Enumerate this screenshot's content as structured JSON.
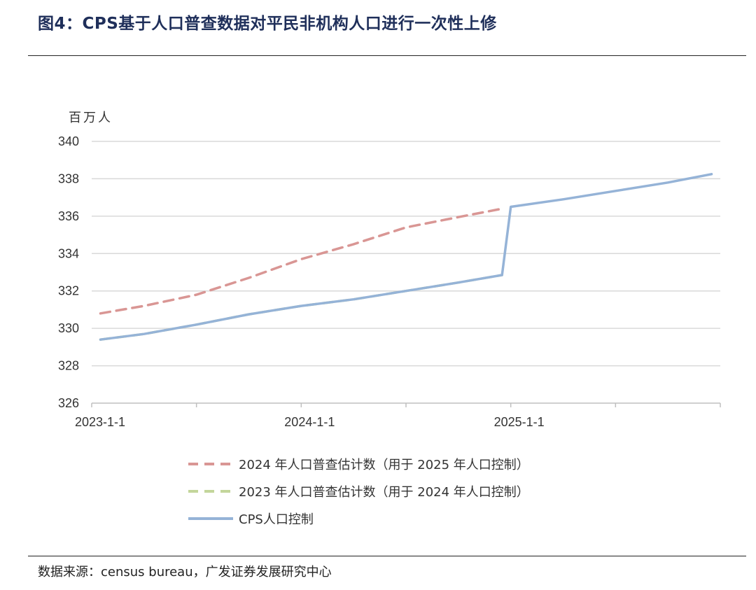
{
  "page": {
    "title": "图4：CPS基于人口普查数据对平民非机构人口进行一次性上修",
    "source": "数据来源：census bureau，广发证券发展研究中心"
  },
  "chart_data": {
    "type": "line",
    "title": "图4：CPS基于人口普查数据对平民非机构人口进行一次性上修",
    "ylabel": "百万人",
    "xlabel": "",
    "ylim": [
      326,
      340
    ],
    "yticks": [
      326,
      328,
      330,
      332,
      334,
      336,
      338,
      340
    ],
    "xlim": [
      0,
      36
    ],
    "xticks": [
      {
        "label": "2023-1-1",
        "x": 0
      },
      {
        "label": "2024-1-1",
        "x": 12
      },
      {
        "label": "2025-1-1",
        "x": 24
      }
    ],
    "minor_xticks": [
      6,
      18,
      30,
      36
    ],
    "grid": true,
    "legend_position": "bottom-center",
    "series": [
      {
        "name": "2024 年人口普查估计数（用于 2025 年人口控制）",
        "color": "#d99694",
        "style": "dashed",
        "points": [
          [
            0.5,
            330.8
          ],
          [
            3,
            331.2
          ],
          [
            6,
            331.8
          ],
          [
            9,
            332.7
          ],
          [
            12,
            333.7
          ],
          [
            15,
            334.5
          ],
          [
            18,
            335.4
          ],
          [
            21,
            335.95
          ],
          [
            23.5,
            336.4
          ]
        ]
      },
      {
        "name": "2023 年人口普查估计数（用于 2024 年人口控制）",
        "color": "#c3d69b",
        "style": "dashed",
        "points": [
          [
            0.5,
            329.4
          ],
          [
            3,
            329.7
          ],
          [
            6,
            330.2
          ],
          [
            9,
            330.75
          ],
          [
            12,
            331.2
          ],
          [
            15,
            331.55
          ],
          [
            18,
            332.0
          ],
          [
            21,
            332.45
          ],
          [
            23.5,
            332.85
          ]
        ]
      },
      {
        "name": "CPS人口控制",
        "color": "#95b3d7",
        "style": "solid",
        "points": [
          [
            0.5,
            329.4
          ],
          [
            3,
            329.7
          ],
          [
            6,
            330.2
          ],
          [
            9,
            330.75
          ],
          [
            12,
            331.2
          ],
          [
            15,
            331.55
          ],
          [
            18,
            332.0
          ],
          [
            21,
            332.45
          ],
          [
            23.5,
            332.85
          ],
          [
            24,
            336.5
          ],
          [
            27,
            336.9
          ],
          [
            30,
            337.35
          ],
          [
            33,
            337.8
          ],
          [
            35.5,
            338.25
          ]
        ]
      }
    ]
  }
}
